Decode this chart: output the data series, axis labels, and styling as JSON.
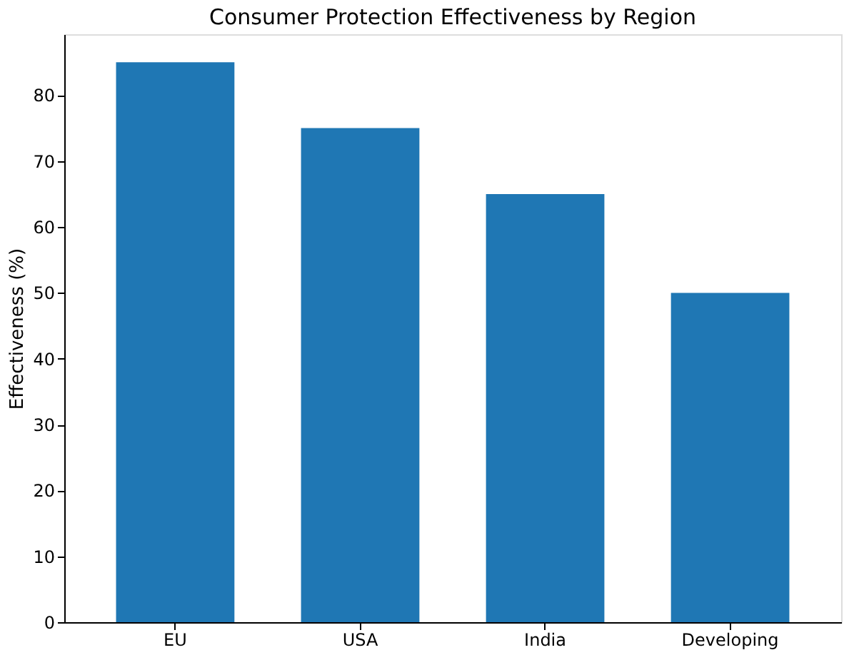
{
  "chart_data": {
    "type": "bar",
    "title": "Consumer Protection Effectiveness by Region",
    "ylabel": "Effectiveness (%)",
    "categories": [
      "EU",
      "USA",
      "India",
      "Developing"
    ],
    "values": [
      85,
      75,
      65,
      50
    ],
    "color": "#1f77b4",
    "ylim": [
      0,
      89.25
    ],
    "yticks": [
      0,
      10,
      20,
      30,
      40,
      50,
      60,
      70,
      80
    ],
    "grid": false
  }
}
